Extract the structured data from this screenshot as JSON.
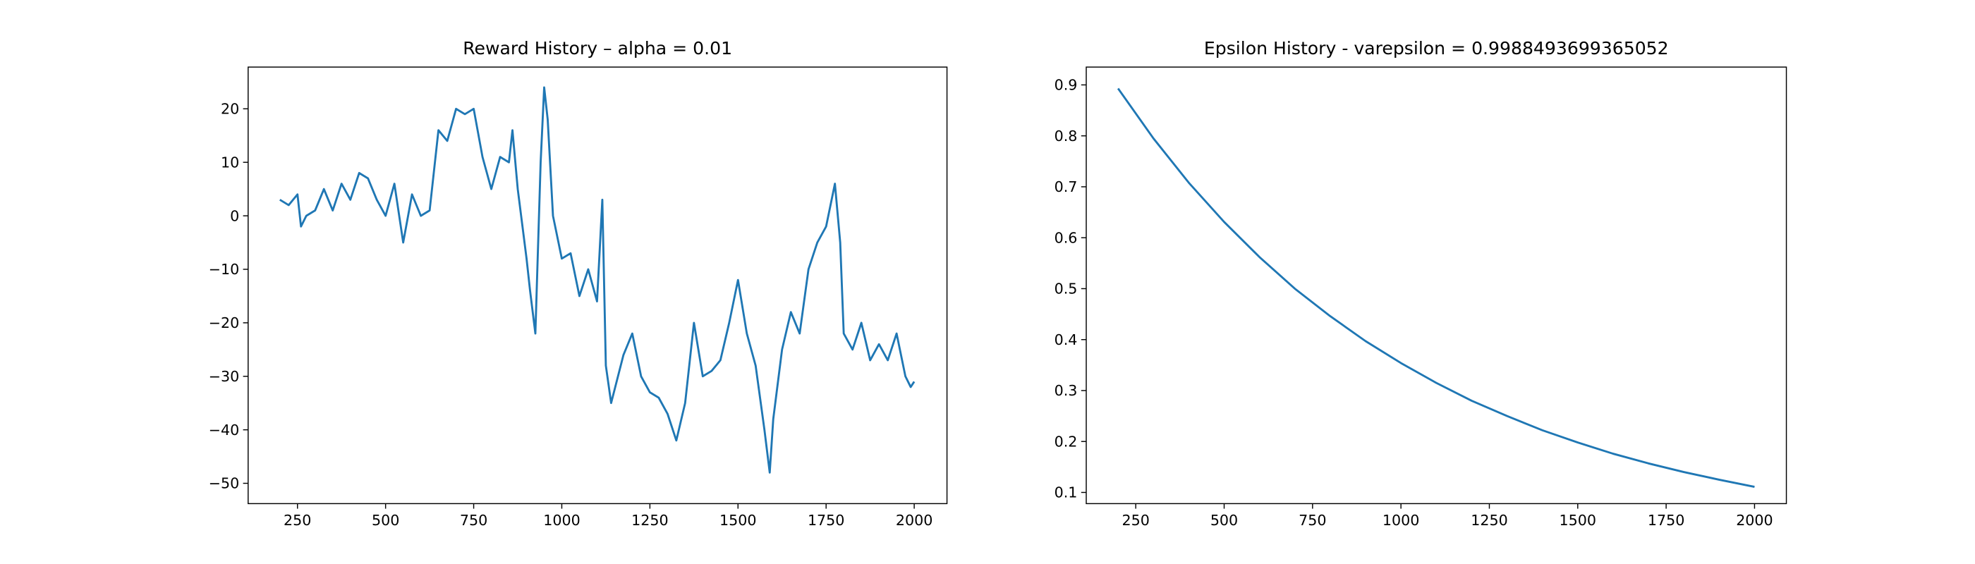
{
  "chart_data": [
    {
      "type": "line",
      "title": "Reward History – alpha = 0.01",
      "x": [
        200,
        225,
        250,
        260,
        275,
        300,
        325,
        350,
        375,
        400,
        425,
        450,
        475,
        500,
        525,
        550,
        575,
        600,
        625,
        650,
        675,
        700,
        725,
        750,
        775,
        800,
        825,
        850,
        860,
        875,
        900,
        910,
        925,
        940,
        950,
        960,
        975,
        1000,
        1025,
        1050,
        1075,
        1100,
        1115,
        1125,
        1140,
        1175,
        1200,
        1225,
        1250,
        1275,
        1300,
        1325,
        1350,
        1375,
        1400,
        1425,
        1450,
        1475,
        1500,
        1525,
        1550,
        1575,
        1590,
        1600,
        1625,
        1650,
        1675,
        1700,
        1725,
        1750,
        1775,
        1790,
        1800,
        1825,
        1850,
        1875,
        1900,
        1925,
        1950,
        1975,
        1990,
        2000
      ],
      "series": [
        {
          "color": "#1f77b4",
          "values": [
            3,
            2,
            4,
            -2,
            0,
            1,
            5,
            1,
            6,
            3,
            8,
            7,
            3,
            0,
            6,
            -5,
            4,
            0,
            1,
            16,
            14,
            20,
            19,
            20,
            11,
            5,
            11,
            10,
            16,
            5,
            -8,
            -14,
            -22,
            10,
            24,
            18,
            0,
            -8,
            -7,
            -15,
            -10,
            -16,
            3,
            -28,
            -35,
            -26,
            -22,
            -30,
            -33,
            -34,
            -37,
            -42,
            -35,
            -20,
            -30,
            -29,
            -27,
            -20,
            -12,
            -22,
            -28,
            -40,
            -48,
            -38,
            -25,
            -18,
            -22,
            -10,
            -5,
            -2,
            6,
            -5,
            -22,
            -25,
            -20,
            -27,
            -24,
            -27,
            -22,
            -30,
            -32,
            -31
          ]
        }
      ],
      "xlim": [
        110,
        2093
      ],
      "ylim": [
        -53.8,
        27.8
      ],
      "xticks": [
        250,
        500,
        750,
        1000,
        1250,
        1500,
        1750,
        2000
      ],
      "yticks": [
        {
          "value": -50,
          "label": "−50"
        },
        {
          "value": -40,
          "label": "−40"
        },
        {
          "value": -30,
          "label": "−30"
        },
        {
          "value": -20,
          "label": "−20"
        },
        {
          "value": -10,
          "label": "−10"
        },
        0,
        10,
        20
      ]
    },
    {
      "type": "line",
      "title": "Epsilon History - varepsilon = 0.9988493699365052",
      "x": [
        200,
        300,
        400,
        500,
        600,
        700,
        800,
        900,
        1000,
        1100,
        1200,
        1300,
        1400,
        1500,
        1600,
        1700,
        1800,
        1900,
        2000
      ],
      "series": [
        {
          "color": "#1f77b4",
          "values": [
            0.893,
            0.795,
            0.708,
            0.631,
            0.562,
            0.5,
            0.446,
            0.397,
            0.354,
            0.315,
            0.28,
            0.25,
            0.222,
            0.198,
            0.176,
            0.157,
            0.14,
            0.125,
            0.111
          ]
        }
      ],
      "xlim": [
        110,
        2090
      ],
      "ylim": [
        0.078,
        0.935
      ],
      "xticks": [
        250,
        500,
        750,
        1000,
        1250,
        1500,
        1750,
        2000
      ],
      "yticks": [
        0.1,
        0.2,
        0.3,
        0.4,
        0.5,
        0.6,
        0.7,
        0.8,
        0.9
      ]
    }
  ]
}
